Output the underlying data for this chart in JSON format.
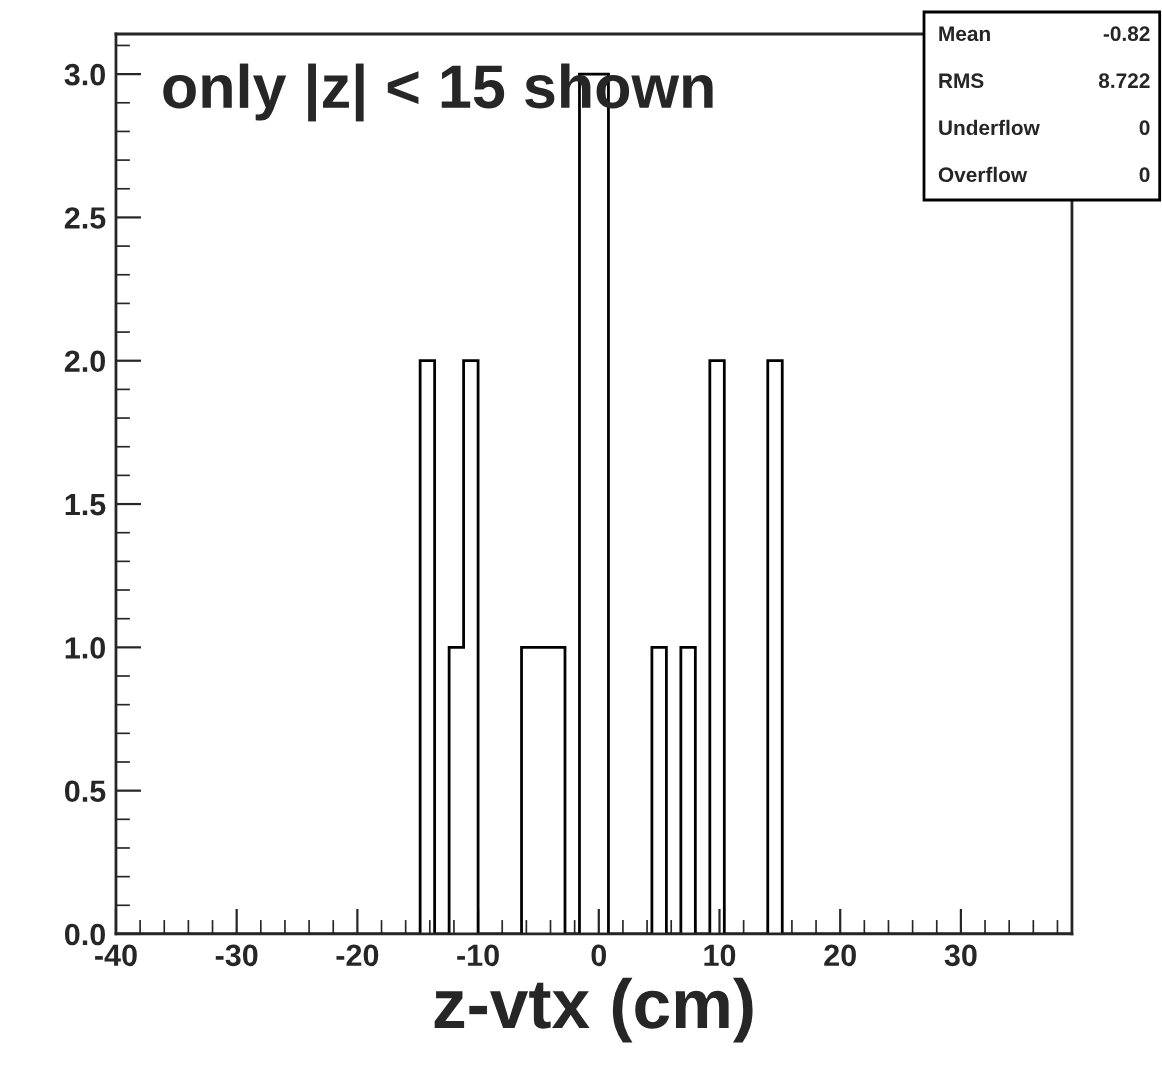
{
  "chart_data": {
    "type": "histogram",
    "xlabel": "z-vtx (cm)",
    "annotations": [
      "only |z| < 15 shown",
      "Mean",
      "-0.82",
      "RMS",
      "8.722",
      "Underflow",
      "0",
      "Overflow",
      "0"
    ],
    "bins": [
      -40,
      -38.8,
      -37.6,
      -36.4,
      -35.2,
      -34,
      -32.8,
      -31.6,
      -30.4,
      -29.2,
      -28,
      -26.8,
      -25.6,
      -24.4,
      -23.2,
      -22,
      -20.8,
      -19.6,
      -18.4,
      -17.2,
      -16,
      -14.8,
      -13.6,
      -12.4,
      -11.2,
      -10,
      -8.8,
      -7.6,
      -6.4,
      -5.2,
      -4,
      -2.8,
      -1.6,
      -0.4,
      0.8,
      2,
      3.2,
      4.4,
      5.6,
      6.8,
      8,
      9.2,
      10.4,
      11.6,
      12.8,
      14,
      15.2,
      16.4,
      17.6,
      18.8,
      20,
      21.2,
      22.4,
      23.6,
      24.8,
      26,
      27.2,
      28.4,
      29.6,
      30.8,
      32,
      33.2,
      34.4,
      35.6,
      36.8,
      38,
      39.2
    ],
    "values": [
      0,
      0,
      0,
      0,
      0,
      0,
      0,
      0,
      0,
      0,
      0,
      0,
      0,
      0,
      0,
      0,
      0,
      0,
      0,
      0,
      0,
      2,
      0,
      1,
      2,
      0,
      0,
      0,
      1,
      1,
      1,
      0,
      3,
      3,
      0,
      0,
      0,
      1,
      0,
      1,
      0,
      2,
      0,
      0,
      0,
      2,
      0,
      0,
      0,
      0,
      0,
      0,
      0,
      0,
      0,
      0,
      0,
      0,
      0,
      0,
      0,
      0,
      0,
      0,
      0,
      0
    ],
    "color": "#000000",
    "xlim": [
      -40,
      39.2
    ],
    "xticks": [
      -40,
      -30,
      -20,
      -10,
      0,
      10,
      20,
      30
    ],
    "ylim": [
      0,
      3.14
    ],
    "yticks": [
      {
        "value": 0,
        "label": "0.0"
      },
      {
        "value": 0.5,
        "label": "0.5"
      },
      {
        "value": 1,
        "label": "1.0"
      },
      {
        "value": 1.5,
        "label": "1.5"
      },
      {
        "value": 2,
        "label": "2.0"
      },
      {
        "value": 2.5,
        "label": "2.5"
      },
      {
        "value": 3,
        "label": "3.0"
      }
    ],
    "grid": false,
    "legend": false
  }
}
